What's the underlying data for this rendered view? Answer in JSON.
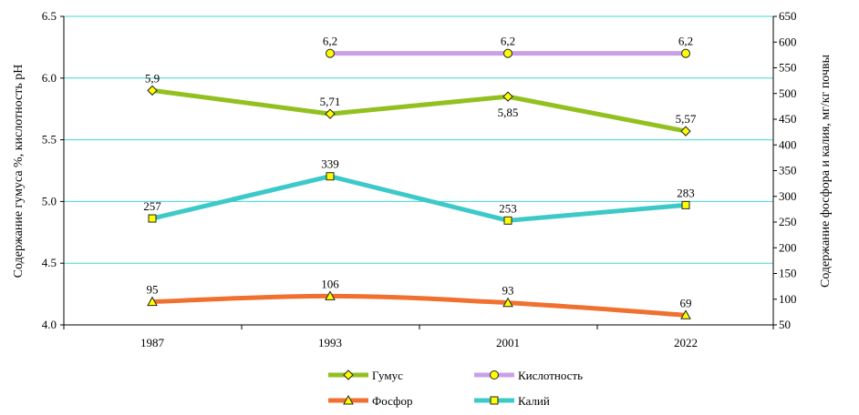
{
  "chart_data": {
    "type": "line",
    "categories": [
      "1987",
      "1993",
      "2001",
      "2022"
    ],
    "ylabel": "Содержание гумуса %,  кислотность рН",
    "y2label": "Содержание фосфора и калия, мг/кг почвы",
    "ylim": [
      4.0,
      6.5
    ],
    "y2lim": [
      50,
      650
    ],
    "yticks": [
      "4.0",
      "4.5",
      "5.0",
      "5.5",
      "6.0",
      "6.5"
    ],
    "y2ticks": [
      "50",
      "100",
      "150",
      "200",
      "250",
      "300",
      "350",
      "400",
      "450",
      "500",
      "550",
      "600",
      "650"
    ],
    "grid": true,
    "series": [
      {
        "name": "Гумус",
        "axis": "left",
        "color": "#92c01f",
        "marker": "diamond",
        "marker_fill": "#ffff00",
        "values": [
          5.9,
          5.71,
          5.85,
          5.57
        ],
        "labels": [
          "5,9",
          "5,71",
          "5,85",
          "5,57"
        ],
        "label_pos": [
          "above",
          "above",
          "below",
          "above"
        ]
      },
      {
        "name": "Кислотность",
        "axis": "left",
        "color": "#c9a0e8",
        "marker": "circle",
        "marker_fill": "#ffff00",
        "values": [
          null,
          6.2,
          6.2,
          6.2
        ],
        "labels": [
          "",
          "6,2",
          "6,2",
          "6,2"
        ],
        "label_pos": [
          "above",
          "above",
          "above",
          "above"
        ]
      },
      {
        "name": "Фосфор",
        "axis": "right",
        "color": "#f07030",
        "marker": "triangle",
        "marker_fill": "#ffff00",
        "values": [
          95,
          106,
          93,
          69
        ],
        "labels": [
          "95",
          "106",
          "93",
          "69"
        ],
        "label_pos": [
          "above",
          "above",
          "above",
          "above"
        ]
      },
      {
        "name": "Калий",
        "axis": "right",
        "color": "#3ec9c9",
        "marker": "square",
        "marker_fill": "#ffff00",
        "values": [
          257,
          339,
          253,
          283
        ],
        "labels": [
          "257",
          "339",
          "253",
          "283"
        ],
        "label_pos": [
          "above",
          "above",
          "above",
          "above"
        ]
      }
    ],
    "legend": {
      "placement": "bottom",
      "order": [
        "Гумус",
        "Кислотность",
        "Фосфор",
        "Калий"
      ]
    }
  }
}
